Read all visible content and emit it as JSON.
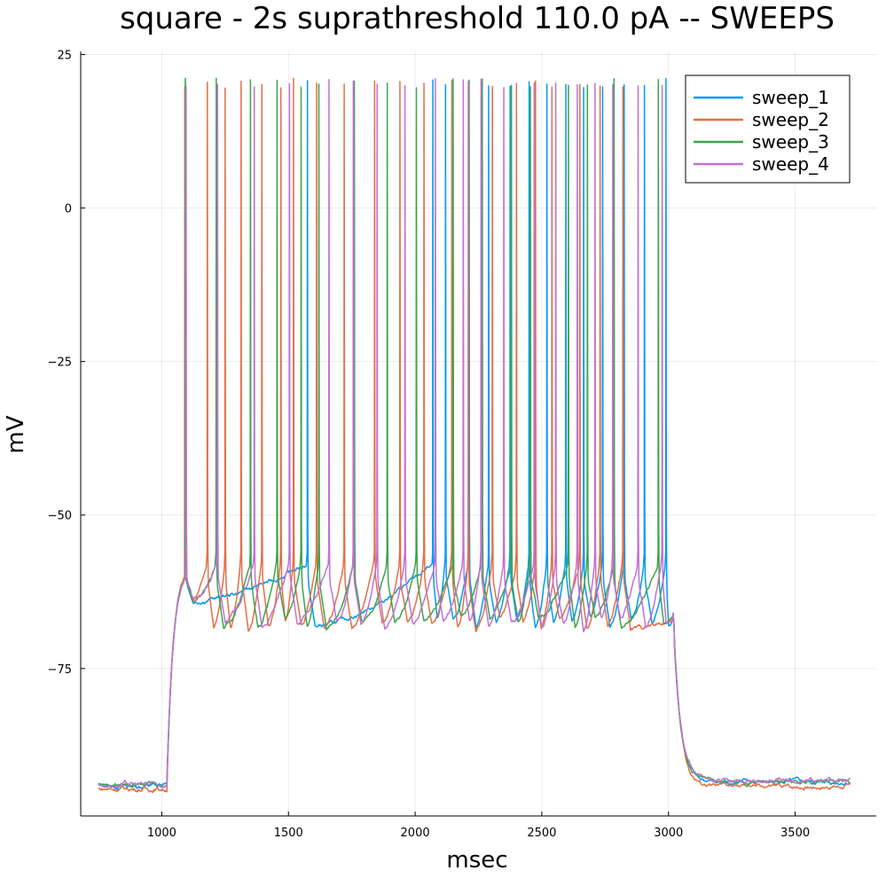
{
  "chart_data": {
    "type": "line",
    "title": "square - 2s suprathreshold 110.0 pA -- SWEEPS",
    "xlabel": "msec",
    "ylabel": "mV",
    "xlim": [
      680,
      3820
    ],
    "ylim": [
      -99,
      25.5
    ],
    "xticks": [
      1000,
      1500,
      2000,
      2500,
      3000,
      3500
    ],
    "yticks": [
      25,
      0,
      -25,
      -50,
      -75
    ],
    "grid": true,
    "legend_position": "top-right",
    "stimulus": {
      "start": 1020,
      "end": 3020,
      "t_start": 750,
      "t_end": 3720
    },
    "series": [
      {
        "name": "sweep_1",
        "color": "#009AFA",
        "rest": -94.1,
        "post_rest": -93.5,
        "spikes": [
          1093,
          1575,
          2070,
          2120,
          2213,
          2290,
          2375,
          2450,
          2520,
          2595,
          2665,
          2740,
          2825,
          2905,
          2990
        ]
      },
      {
        "name": "sweep_2",
        "color": "#E26F46",
        "rest": -94.6,
        "post_rest": -94.2,
        "spikes": [
          1091,
          1180,
          1250,
          1313,
          1395,
          1470,
          1520,
          1611,
          1720,
          1840,
          1940,
          2035,
          2145,
          2210,
          2305,
          2400,
          2475,
          2540,
          2650,
          2730,
          2820
        ]
      },
      {
        "name": "sweep_3",
        "color": "#3DA44D",
        "rest": -93.8,
        "post_rest": -93.4,
        "spikes": [
          1093,
          1215,
          1350,
          1455,
          1550,
          1620,
          1760,
          1890,
          2005,
          2150,
          2265,
          2380,
          2455,
          2605,
          2680,
          2785,
          2960
        ]
      },
      {
        "name": "sweep_4",
        "color": "#C271D2",
        "rest": -93.9,
        "post_rest": -93.3,
        "spikes": [
          1096,
          1220,
          1365,
          1504,
          1660,
          1756,
          1850,
          1960,
          2080,
          2190,
          2260,
          2350,
          2470,
          2555,
          2640,
          2710,
          2780,
          2880,
          2975
        ]
      }
    ]
  }
}
